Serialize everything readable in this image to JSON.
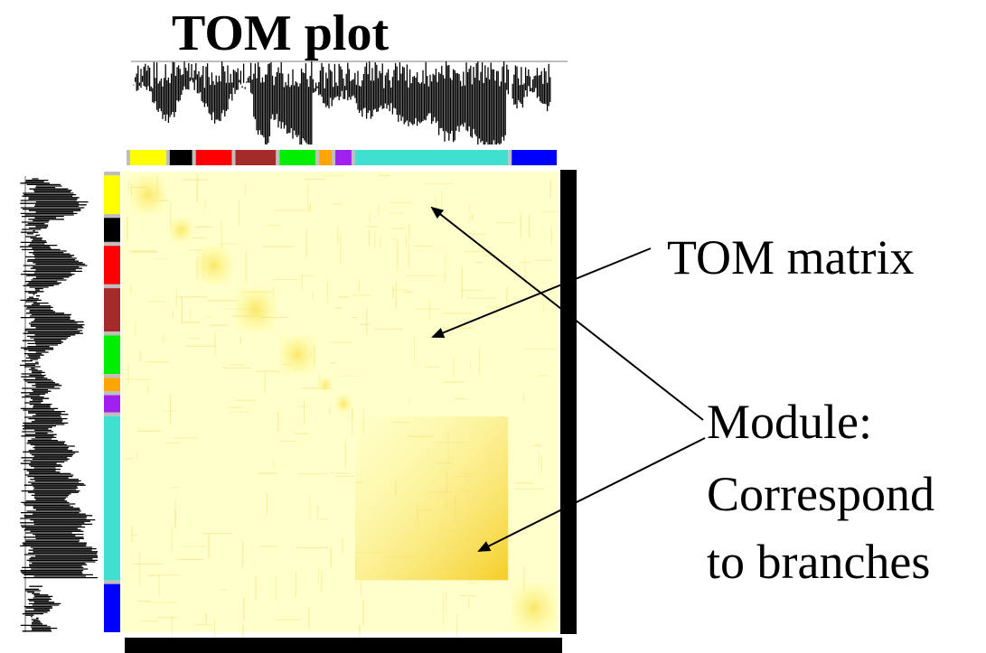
{
  "title": "TOM plot",
  "labels": {
    "tom_matrix": "TOM matrix",
    "module_line1": "Module:",
    "module_line2": "Correspond",
    "module_line3": "to branches"
  },
  "modules": [
    {
      "color": "#ffff00",
      "size": 40
    },
    {
      "color": "#000000",
      "size": 25
    },
    {
      "color": "#ff0000",
      "size": 40
    },
    {
      "color": "#a52a2a",
      "size": 45
    },
    {
      "color": "#00ee00",
      "size": 40
    },
    {
      "color": "#ffa500",
      "size": 14
    },
    {
      "color": "#a020f0",
      "size": 18
    },
    {
      "color": "#40e0d0",
      "size": 170
    },
    {
      "color": "#0000ff",
      "size": 50
    }
  ],
  "colors": {
    "matrix_bg": "#ffffcc",
    "grey_module": "#bebebe",
    "heat_strong": "#f5c000"
  }
}
